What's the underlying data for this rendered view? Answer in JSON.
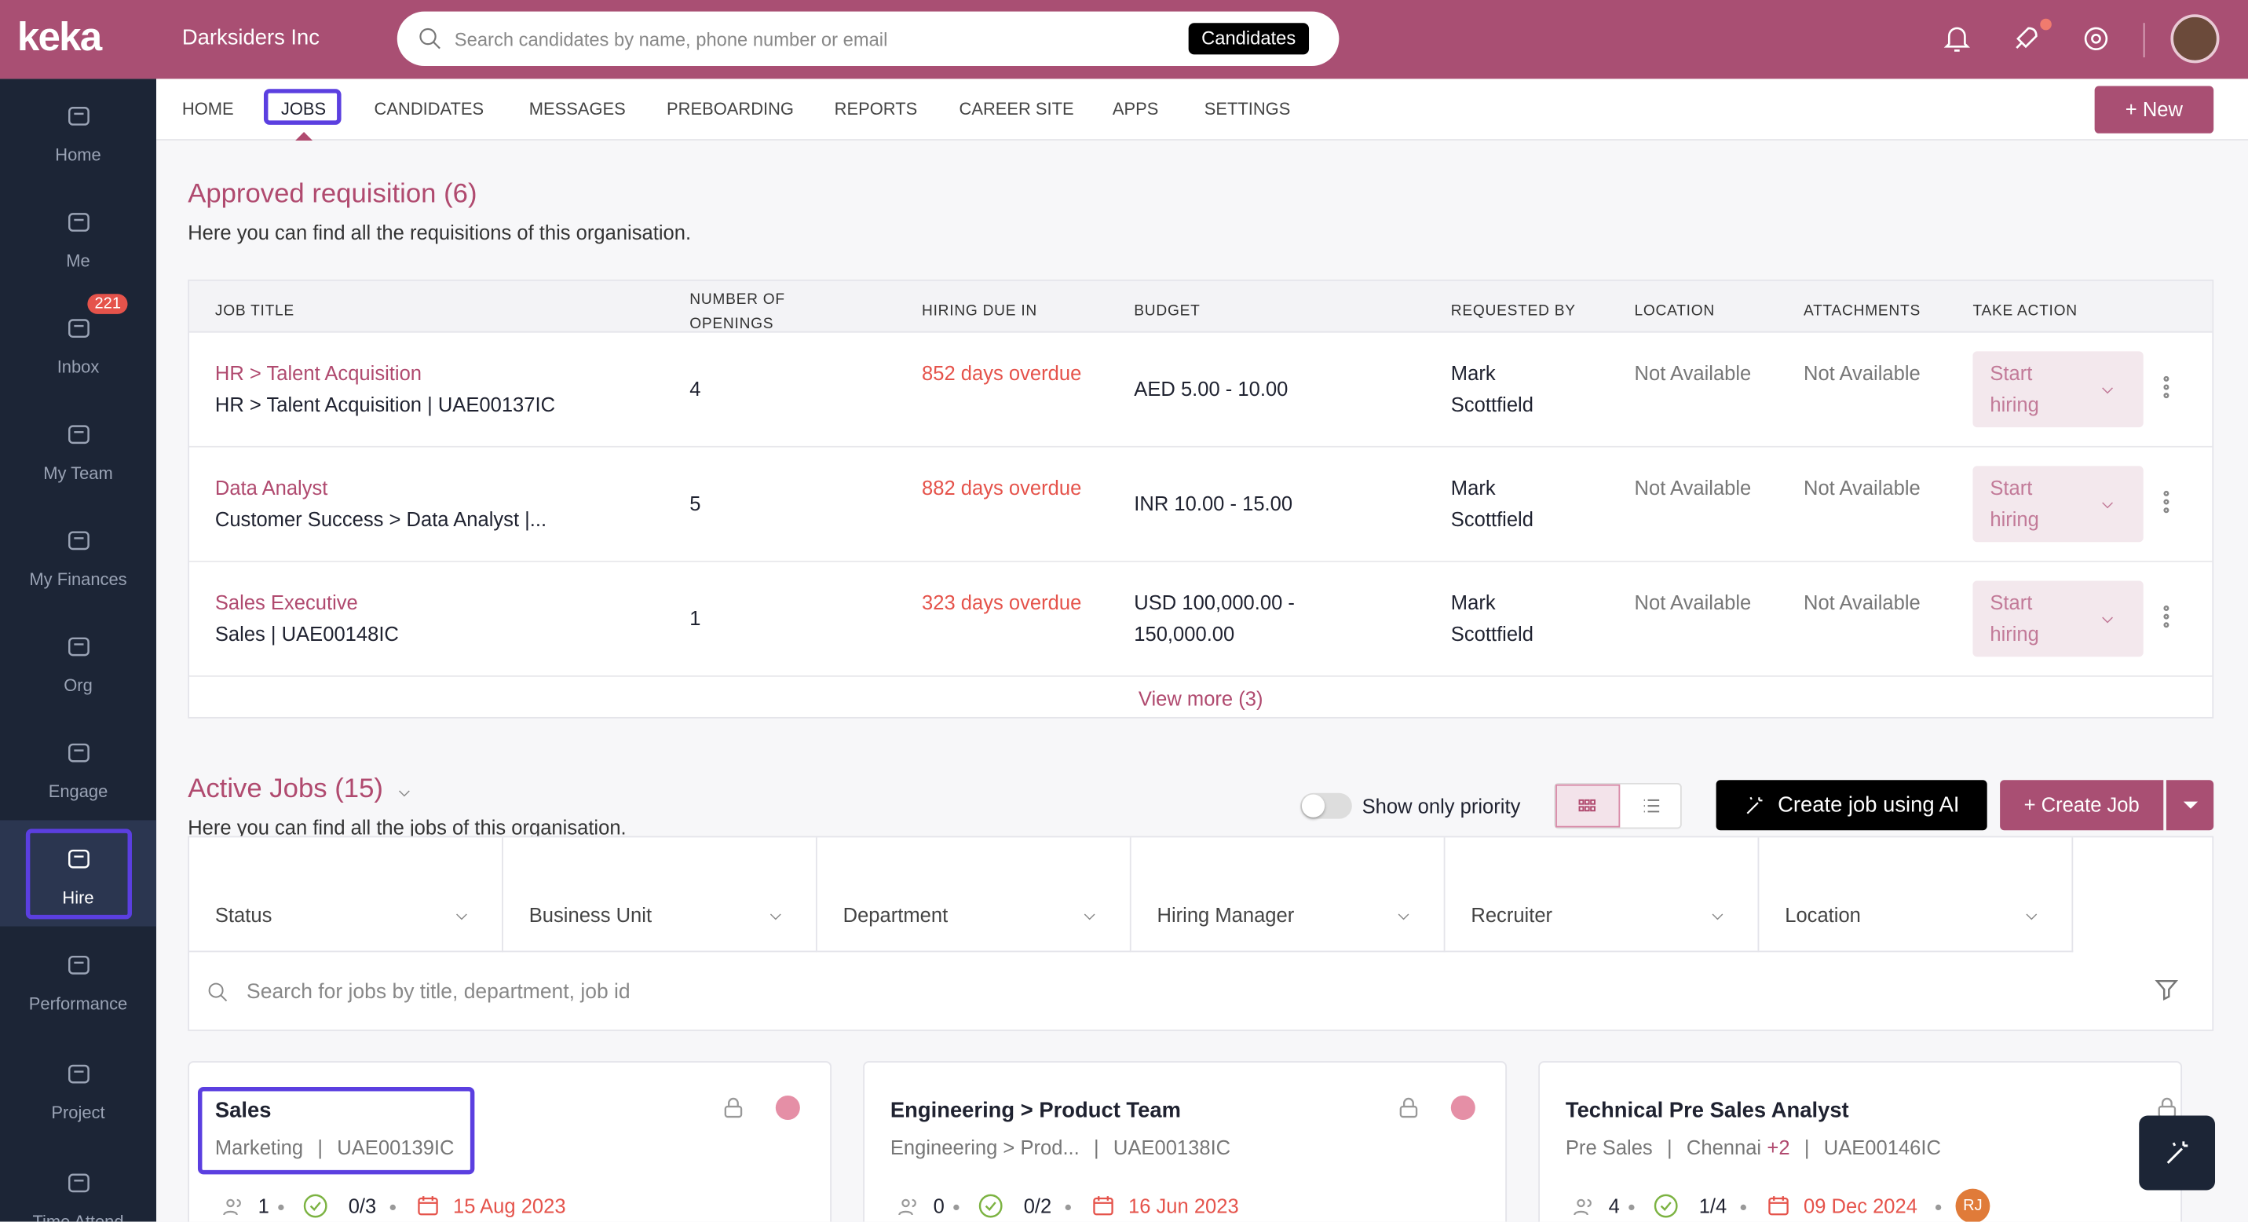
{
  "brand": "keka",
  "org": "Darksiders Inc",
  "search": {
    "placeholder": "Search candidates by name, phone number or email",
    "scope": "Candidates"
  },
  "sidebar": [
    {
      "label": "Home"
    },
    {
      "label": "Me"
    },
    {
      "label": "Inbox",
      "badge": "221"
    },
    {
      "label": "My Team"
    },
    {
      "label": "My Finances"
    },
    {
      "label": "Org"
    },
    {
      "label": "Engage"
    },
    {
      "label": "Hire"
    },
    {
      "label": "Performance"
    },
    {
      "label": "Project"
    },
    {
      "label": "Time Attend"
    }
  ],
  "nav": [
    "HOME",
    "JOBS",
    "CANDIDATES",
    "MESSAGES",
    "PREBOARDING",
    "REPORTS",
    "CAREER SITE",
    "APPS",
    "SETTINGS"
  ],
  "new_button": "+ New",
  "requisitions": {
    "title": "Approved requisition (6)",
    "subtitle": "Here you can find all the requisitions of this organisation.",
    "headers": [
      "JOB TITLE",
      "NUMBER OF OPENINGS",
      "HIRING DUE IN",
      "BUDGET",
      "REQUESTED BY",
      "LOCATION",
      "ATTACHMENTS",
      "TAKE ACTION"
    ],
    "rows": [
      {
        "title": "HR > Talent Acquisition",
        "path": "HR > Talent Acquisition | UAE00137IC",
        "openings": "4",
        "due": "852 days overdue",
        "budget": "AED 5.00 - 10.00",
        "requested_by": "Mark Scottfield",
        "location": "Not Available",
        "attachments": "Not Available",
        "action": "Start hiring"
      },
      {
        "title": "Data Analyst",
        "path": "Customer Success > Data Analyst |...",
        "openings": "5",
        "due": "882 days overdue",
        "budget": "INR 10.00 - 15.00",
        "requested_by": "Mark Scottfield",
        "location": "Not Available",
        "attachments": "Not Available",
        "action": "Start hiring"
      },
      {
        "title": "Sales Executive",
        "path": "Sales | UAE00148IC",
        "openings": "1",
        "due": "323 days overdue",
        "budget": "USD 100,000.00 - 150,000.00",
        "requested_by": "Mark Scottfield",
        "location": "Not Available",
        "attachments": "Not Available",
        "action": "Start hiring"
      }
    ],
    "view_more": "View more (3)"
  },
  "active_jobs": {
    "title": "Active Jobs (15)",
    "subtitle": "Here you can find all the jobs of this organisation.",
    "priority_toggle": "Show only priority",
    "ai_button": "Create job using AI",
    "create_button": "+ Create Job",
    "filters": [
      "Status",
      "Business Unit",
      "Department",
      "Hiring Manager",
      "Recruiter",
      "Location"
    ],
    "search_placeholder": "Search for jobs by title, department, job id",
    "cards": [
      {
        "title": "Sales",
        "department": "Marketing",
        "job_id": "UAE00139IC",
        "openings": "1",
        "hired": "0/3",
        "date": "15 Aug 2023"
      },
      {
        "title": "Engineering > Product Team",
        "department": "Engineering > Prod...",
        "job_id": "UAE00138IC",
        "openings": "0",
        "hired": "0/2",
        "date": "16 Jun 2023"
      },
      {
        "title": "Technical Pre Sales Analyst",
        "department": "Pre Sales",
        "location": "Chennai",
        "location_extra": "+2",
        "job_id": "UAE00146IC",
        "openings": "4",
        "hired": "1/4",
        "date": "09 Dec 2024",
        "recruiter": "RJ"
      }
    ]
  }
}
